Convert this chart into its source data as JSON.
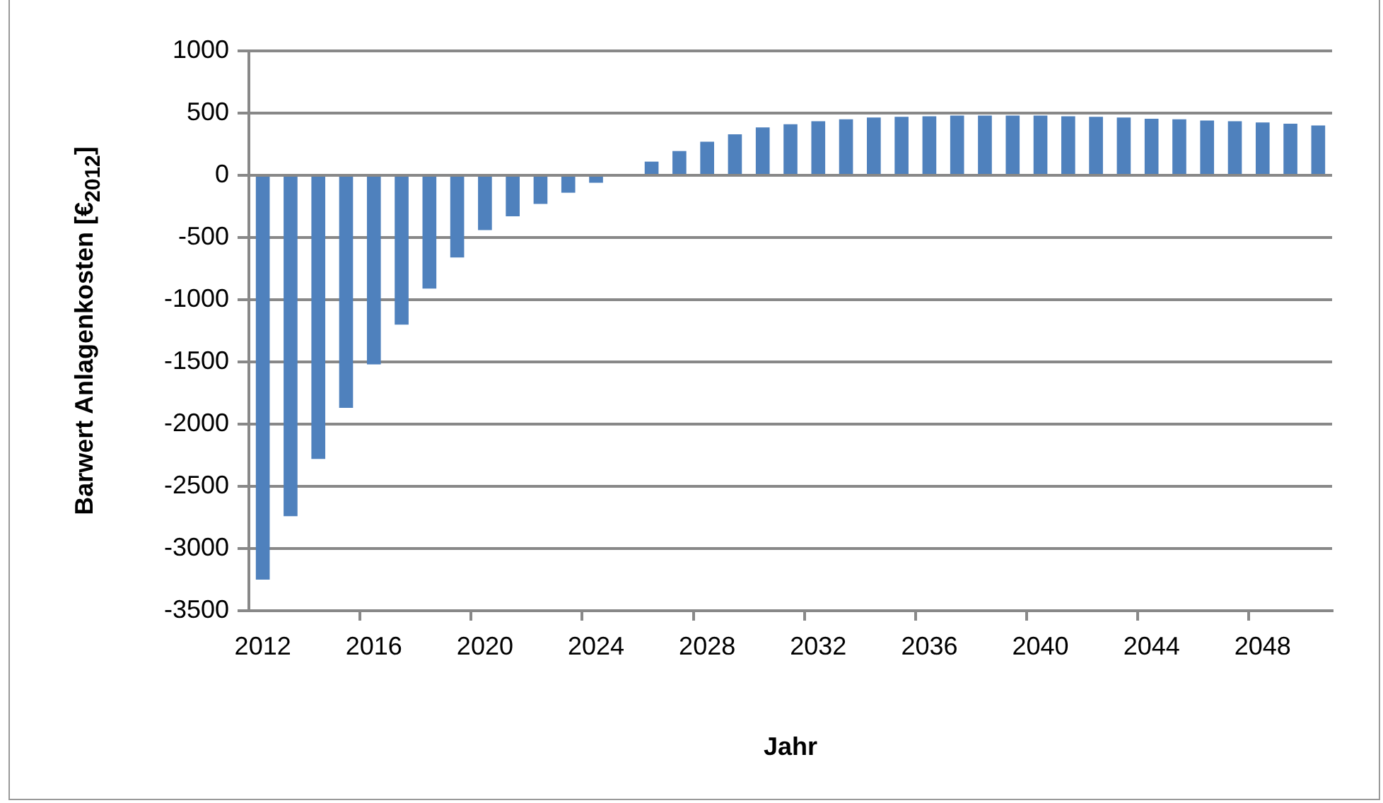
{
  "chart_data": {
    "type": "bar",
    "xlabel": "Jahr",
    "ylabel": "Barwert Anlagenkosten [€$_{2012}$]",
    "categories": [
      "2012",
      null,
      null,
      null,
      "2016",
      null,
      null,
      null,
      "2020",
      null,
      null,
      null,
      "2024",
      null,
      null,
      null,
      "2028",
      null,
      null,
      null,
      "2032",
      null,
      null,
      null,
      "2036",
      null,
      null,
      null,
      "2040",
      null,
      null,
      null,
      "2044",
      null,
      null,
      null,
      "2048",
      null,
      null
    ],
    "values": [
      -3250,
      -2740,
      -2280,
      -1870,
      -1520,
      -1200,
      -910,
      -660,
      -440,
      -330,
      -230,
      -140,
      -60,
      0,
      110,
      195,
      270,
      330,
      385,
      410,
      435,
      450,
      465,
      470,
      475,
      480,
      480,
      480,
      480,
      475,
      470,
      465,
      455,
      450,
      440,
      435,
      425,
      415,
      400
    ],
    "color": "#4f81bd",
    "ylim": [
      -3500,
      1000
    ],
    "yticks": [
      -3500,
      -3000,
      -2500,
      -2000,
      -1500,
      -1000,
      -500,
      0,
      500,
      1000
    ],
    "grid": "y"
  }
}
